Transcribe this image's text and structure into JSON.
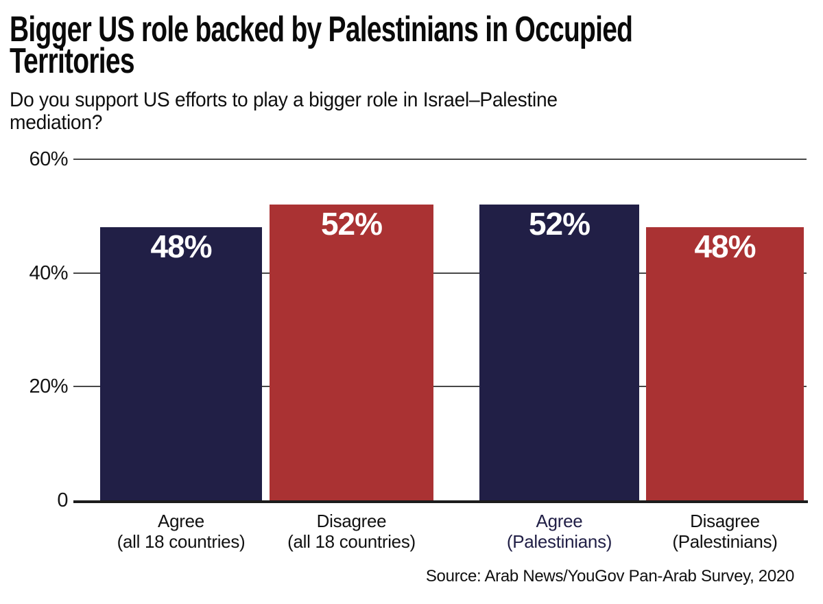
{
  "header": {
    "title_lines": [
      "Bigger US role backed by Palestinians in Occupied",
      "Territories"
    ],
    "subtitle_lines": [
      "Do you support US efforts to play a bigger role in Israel–Palestine",
      "mediation?"
    ]
  },
  "chart_data": {
    "type": "bar",
    "title": "Bigger US role backed by Palestinians in Occupied Territories",
    "subtitle": "Do you support US efforts to play a bigger role in Israel–Palestine mediation?",
    "categories": [
      "Agree (all 18 countries)",
      "Disagree (all 18 countries)",
      "Agree (Palestinians)",
      "Disagree (Palestinians)"
    ],
    "category_lines": [
      [
        "Agree",
        "(all 18 countries)"
      ],
      [
        "Disagree",
        "(all 18 countries)"
      ],
      [
        "Agree",
        "(Palestinians)"
      ],
      [
        "Disagree",
        "(Palestinians)"
      ]
    ],
    "values": [
      48,
      52,
      52,
      48
    ],
    "value_labels": [
      "48%",
      "52%",
      "52%",
      "48%"
    ],
    "bar_colors": [
      "#211f46",
      "#aa3233",
      "#211f46",
      "#aa3233"
    ],
    "category_label_colors": [
      "#111111",
      "#111111",
      "#211f46",
      "#111111"
    ],
    "value_label_color": "#ffffff",
    "y_axis": {
      "ticks": [
        {
          "label": "60%",
          "value": 60
        },
        {
          "label": "40%",
          "value": 40
        },
        {
          "label": "20%",
          "value": 20
        },
        {
          "label": "0",
          "value": 0
        }
      ],
      "max": 60
    },
    "ylim": [
      0,
      60
    ],
    "grid": true,
    "legend": false,
    "xlabel": "",
    "ylabel": "",
    "source": "Source: Arab News/YouGov Pan-Arab Survey, 2020"
  },
  "colors": {
    "navy": "#211f46",
    "red": "#aa3233",
    "gridline": "#474747",
    "baseline": "#1c1c1c",
    "text": "#0d0d0d",
    "background": "#ffffff"
  }
}
